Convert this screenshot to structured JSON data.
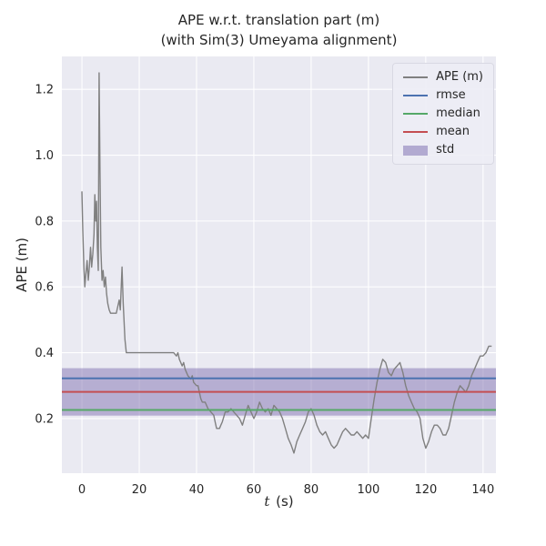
{
  "chart_data": {
    "type": "line",
    "title": "APE w.r.t. translation part (m)",
    "subtitle": "(with Sim(3) Umeyama alignment)",
    "xlabel": "t (s)",
    "ylabel": "APE (m)",
    "x_range": [
      -7.0,
      144.5
    ],
    "y_range": [
      0.034,
      1.3
    ],
    "x_ticks": [
      0,
      20,
      40,
      60,
      80,
      100,
      120,
      140
    ],
    "y_ticks": [
      0.2,
      0.4,
      0.6,
      0.8,
      1.0,
      1.2
    ],
    "grid": true,
    "legend_position": "upper right",
    "stats": {
      "rmse": 0.322,
      "mean": 0.281,
      "median": 0.226,
      "std": 0.072
    },
    "std_band": {
      "lower": 0.209,
      "upper": 0.353,
      "color": "#8172B2",
      "opacity": 0.5
    },
    "stat_lines": [
      {
        "name": "rmse",
        "value": 0.322,
        "color": "#4C72B0"
      },
      {
        "name": "median",
        "value": 0.226,
        "color": "#55A868"
      },
      {
        "name": "mean",
        "value": 0.281,
        "color": "#C44E52"
      }
    ],
    "series": [
      {
        "name": "APE (m)",
        "color": "#808080",
        "points": [
          [
            0,
            0.89
          ],
          [
            0.3,
            0.77
          ],
          [
            0.7,
            0.66
          ],
          [
            1,
            0.6
          ],
          [
            1.4,
            0.64
          ],
          [
            1.8,
            0.68
          ],
          [
            2.2,
            0.62
          ],
          [
            2.6,
            0.66
          ],
          [
            3,
            0.72
          ],
          [
            3.4,
            0.66
          ],
          [
            3.8,
            0.7
          ],
          [
            4.2,
            0.76
          ],
          [
            4.5,
            0.88
          ],
          [
            4.8,
            0.8
          ],
          [
            5.1,
            0.86
          ],
          [
            5.4,
            0.72
          ],
          [
            5.7,
            0.65
          ],
          [
            6,
            1.25
          ],
          [
            6.3,
            0.95
          ],
          [
            6.6,
            0.72
          ],
          [
            7,
            0.62
          ],
          [
            7.4,
            0.65
          ],
          [
            7.8,
            0.6
          ],
          [
            8.2,
            0.63
          ],
          [
            8.6,
            0.58
          ],
          [
            9,
            0.55
          ],
          [
            9.5,
            0.53
          ],
          [
            10,
            0.52
          ],
          [
            11,
            0.52
          ],
          [
            12,
            0.52
          ],
          [
            12.5,
            0.54
          ],
          [
            13,
            0.56
          ],
          [
            13.4,
            0.53
          ],
          [
            14,
            0.66
          ],
          [
            14.4,
            0.55
          ],
          [
            15,
            0.44
          ],
          [
            15.5,
            0.4
          ],
          [
            16,
            0.4
          ],
          [
            17,
            0.4
          ],
          [
            18,
            0.4
          ],
          [
            19,
            0.4
          ],
          [
            20,
            0.4
          ],
          [
            21,
            0.4
          ],
          [
            22,
            0.4
          ],
          [
            23,
            0.4
          ],
          [
            24,
            0.4
          ],
          [
            25,
            0.4
          ],
          [
            26,
            0.4
          ],
          [
            27,
            0.4
          ],
          [
            28,
            0.4
          ],
          [
            29,
            0.4
          ],
          [
            30,
            0.4
          ],
          [
            31,
            0.4
          ],
          [
            32,
            0.4
          ],
          [
            33,
            0.39
          ],
          [
            33.5,
            0.4
          ],
          [
            34,
            0.38
          ],
          [
            35,
            0.36
          ],
          [
            35.5,
            0.37
          ],
          [
            36,
            0.35
          ],
          [
            37,
            0.33
          ],
          [
            38,
            0.32
          ],
          [
            38.5,
            0.33
          ],
          [
            39,
            0.31
          ],
          [
            40,
            0.3
          ],
          [
            40.5,
            0.3
          ],
          [
            41,
            0.28
          ],
          [
            41.5,
            0.26
          ],
          [
            42,
            0.25
          ],
          [
            43,
            0.25
          ],
          [
            43.5,
            0.24
          ],
          [
            44,
            0.23
          ],
          [
            45,
            0.22
          ],
          [
            46,
            0.21
          ],
          [
            46.5,
            0.19
          ],
          [
            47,
            0.17
          ],
          [
            48,
            0.17
          ],
          [
            48.5,
            0.18
          ],
          [
            49,
            0.19
          ],
          [
            50,
            0.22
          ],
          [
            51,
            0.22
          ],
          [
            52,
            0.23
          ],
          [
            53,
            0.22
          ],
          [
            54,
            0.21
          ],
          [
            55,
            0.2
          ],
          [
            56,
            0.18
          ],
          [
            57,
            0.21
          ],
          [
            58,
            0.24
          ],
          [
            59,
            0.22
          ],
          [
            60,
            0.2
          ],
          [
            61,
            0.22
          ],
          [
            62,
            0.25
          ],
          [
            63,
            0.23
          ],
          [
            64,
            0.22
          ],
          [
            65,
            0.23
          ],
          [
            66,
            0.21
          ],
          [
            67,
            0.24
          ],
          [
            68,
            0.23
          ],
          [
            69,
            0.22
          ],
          [
            70,
            0.2
          ],
          [
            71,
            0.17
          ],
          [
            72,
            0.14
          ],
          [
            73,
            0.12
          ],
          [
            74,
            0.095
          ],
          [
            75,
            0.13
          ],
          [
            76,
            0.15
          ],
          [
            77,
            0.17
          ],
          [
            78,
            0.19
          ],
          [
            79,
            0.22
          ],
          [
            80,
            0.23
          ],
          [
            81,
            0.21
          ],
          [
            82,
            0.18
          ],
          [
            83,
            0.16
          ],
          [
            84,
            0.15
          ],
          [
            85,
            0.16
          ],
          [
            86,
            0.14
          ],
          [
            87,
            0.12
          ],
          [
            88,
            0.11
          ],
          [
            89,
            0.12
          ],
          [
            90,
            0.14
          ],
          [
            91,
            0.16
          ],
          [
            92,
            0.17
          ],
          [
            93,
            0.16
          ],
          [
            94,
            0.15
          ],
          [
            95,
            0.15
          ],
          [
            96,
            0.16
          ],
          [
            97,
            0.15
          ],
          [
            98,
            0.14
          ],
          [
            99,
            0.15
          ],
          [
            100,
            0.14
          ],
          [
            101,
            0.2
          ],
          [
            102,
            0.26
          ],
          [
            103,
            0.31
          ],
          [
            104,
            0.35
          ],
          [
            105,
            0.38
          ],
          [
            106,
            0.37
          ],
          [
            107,
            0.34
          ],
          [
            108,
            0.33
          ],
          [
            109,
            0.35
          ],
          [
            110,
            0.36
          ],
          [
            111,
            0.37
          ],
          [
            112,
            0.34
          ],
          [
            113,
            0.3
          ],
          [
            114,
            0.27
          ],
          [
            115,
            0.25
          ],
          [
            116,
            0.23
          ],
          [
            117,
            0.22
          ],
          [
            118,
            0.2
          ],
          [
            119,
            0.14
          ],
          [
            120,
            0.11
          ],
          [
            121,
            0.13
          ],
          [
            122,
            0.16
          ],
          [
            123,
            0.18
          ],
          [
            124,
            0.18
          ],
          [
            125,
            0.17
          ],
          [
            126,
            0.15
          ],
          [
            127,
            0.15
          ],
          [
            128,
            0.17
          ],
          [
            129,
            0.21
          ],
          [
            130,
            0.25
          ],
          [
            131,
            0.28
          ],
          [
            132,
            0.3
          ],
          [
            133,
            0.29
          ],
          [
            134,
            0.28
          ],
          [
            135,
            0.3
          ],
          [
            136,
            0.33
          ],
          [
            137,
            0.35
          ],
          [
            138,
            0.37
          ],
          [
            139,
            0.39
          ],
          [
            140,
            0.39
          ],
          [
            141,
            0.4
          ],
          [
            142,
            0.42
          ],
          [
            143,
            0.42
          ]
        ]
      }
    ],
    "legend": [
      {
        "label": "APE (m)",
        "color": "#808080",
        "type": "line"
      },
      {
        "label": "rmse",
        "color": "#4C72B0",
        "type": "line"
      },
      {
        "label": "median",
        "color": "#55A868",
        "type": "line"
      },
      {
        "label": "mean",
        "color": "#C44E52",
        "type": "line"
      },
      {
        "label": "std",
        "color": "#8172B2",
        "type": "patch"
      }
    ],
    "colors": {
      "figure_bg": "#ffffff",
      "plot_bg": "#eaeaf2",
      "grid": "#ffffff",
      "tick_label": "#262626"
    }
  }
}
